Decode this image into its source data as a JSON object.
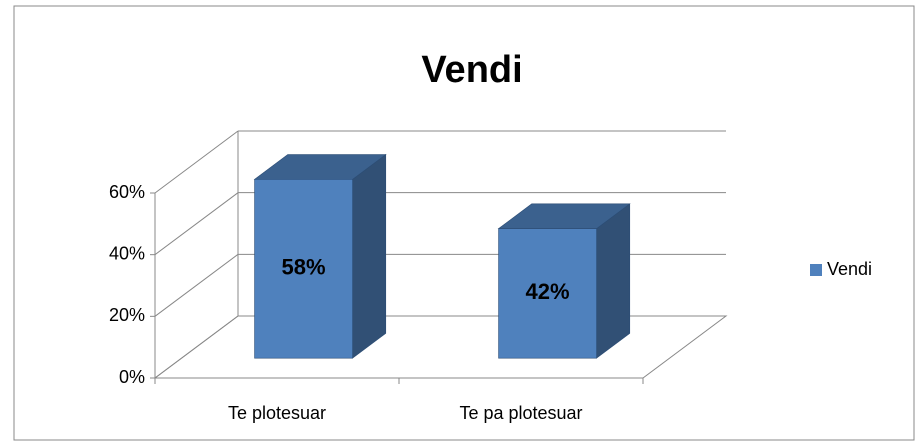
{
  "chart_data": {
    "type": "bar3d",
    "title": "Vendi",
    "categories": [
      "Te plotesuar",
      "Te pa plotesuar"
    ],
    "series": [
      {
        "name": "Vendi",
        "color": "#4f81bd",
        "values": [
          58,
          42
        ],
        "value_labels": [
          "58%",
          "42%"
        ]
      }
    ],
    "ylim": [
      0,
      60
    ],
    "yticks": [
      {
        "value": 0,
        "label": "0%"
      },
      {
        "value": 20,
        "label": "20%"
      },
      {
        "value": 40,
        "label": "40%"
      },
      {
        "value": 60,
        "label": "60%"
      }
    ],
    "grid": true,
    "legend": "right"
  }
}
